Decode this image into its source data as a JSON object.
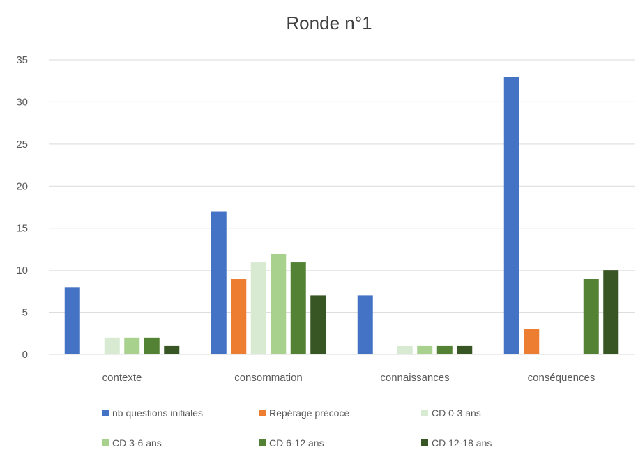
{
  "chart_data": {
    "type": "bar",
    "title": "Ronde n°1",
    "xlabel": "",
    "ylabel": "",
    "ylim": [
      0,
      35
    ],
    "yticks": [
      0,
      5,
      10,
      15,
      20,
      25,
      30,
      35
    ],
    "grid": true,
    "legend_position": "bottom",
    "categories": [
      "contexte",
      "consommation",
      "connaissances",
      "conséquences"
    ],
    "series": [
      {
        "name": "nb questions initiales",
        "color": "#4472c4",
        "values": [
          8,
          17,
          7,
          33
        ]
      },
      {
        "name": "Repérage précoce",
        "color": "#ed7d31",
        "values": [
          0,
          9,
          0,
          3
        ]
      },
      {
        "name": "CD 0-3 ans",
        "color": "#d9ead3",
        "values": [
          2,
          11,
          1,
          0
        ]
      },
      {
        "name": "CD 3-6 ans",
        "color": "#a9d18e",
        "values": [
          2,
          12,
          1,
          0
        ]
      },
      {
        "name": "CD 6-12 ans",
        "color": "#548235",
        "values": [
          2,
          11,
          1,
          9
        ]
      },
      {
        "name": "CD 12-18 ans",
        "color": "#375623",
        "values": [
          1,
          7,
          1,
          10
        ]
      }
    ]
  }
}
